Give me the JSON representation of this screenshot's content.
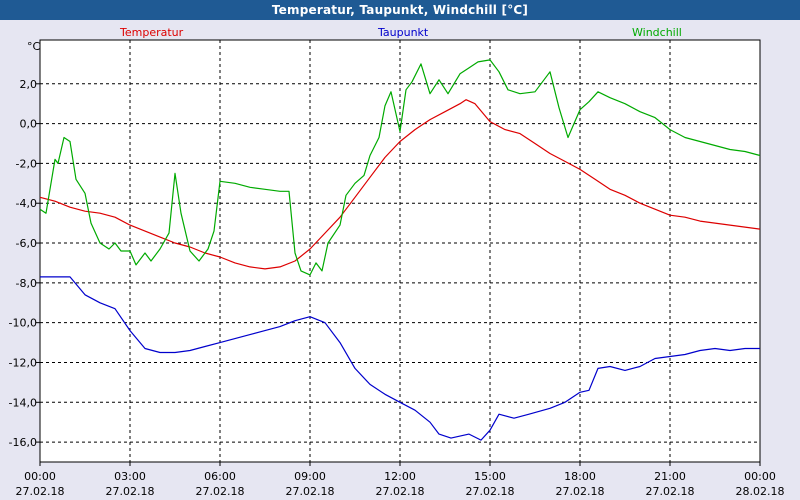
{
  "window": {
    "title": "Temperatur, Taupunkt, Windchill [°C]"
  },
  "chart_data": {
    "type": "line",
    "ylabel_unit": "°C",
    "ylim": [
      -17,
      4.2
    ],
    "y_ticks": [
      "2,0",
      "0,0",
      "-2,0",
      "-4,0",
      "-6,0",
      "-8,0",
      "-10,0",
      "-12,0",
      "-14,0",
      "-16,0"
    ],
    "y_tick_values": [
      2,
      0,
      -2,
      -4,
      -6,
      -8,
      -10,
      -12,
      -14,
      -16
    ],
    "x_tick_times": [
      "00:00",
      "03:00",
      "06:00",
      "09:00",
      "12:00",
      "15:00",
      "18:00",
      "21:00",
      "00:00"
    ],
    "x_tick_dates": [
      "27.02.18",
      "27.02.18",
      "27.02.18",
      "27.02.18",
      "27.02.18",
      "27.02.18",
      "27.02.18",
      "27.02.18",
      "28.02.18"
    ],
    "x_range_hours": [
      0,
      24
    ],
    "grid": true,
    "legend_position": "top",
    "series": [
      {
        "name": "Temperatur",
        "color": "#dd0000",
        "points": [
          [
            0,
            -3.7
          ],
          [
            0.5,
            -3.9
          ],
          [
            1,
            -4.2
          ],
          [
            1.5,
            -4.4
          ],
          [
            2,
            -4.5
          ],
          [
            2.5,
            -4.7
          ],
          [
            3,
            -5.1
          ],
          [
            3.5,
            -5.4
          ],
          [
            4,
            -5.7
          ],
          [
            4.5,
            -6.0
          ],
          [
            5,
            -6.2
          ],
          [
            5.5,
            -6.5
          ],
          [
            6,
            -6.7
          ],
          [
            6.5,
            -7.0
          ],
          [
            7,
            -7.2
          ],
          [
            7.5,
            -7.3
          ],
          [
            8,
            -7.2
          ],
          [
            8.5,
            -6.9
          ],
          [
            9,
            -6.3
          ],
          [
            9.5,
            -5.5
          ],
          [
            10,
            -4.7
          ],
          [
            10.5,
            -3.7
          ],
          [
            11,
            -2.7
          ],
          [
            11.5,
            -1.7
          ],
          [
            12,
            -0.9
          ],
          [
            12.5,
            -0.3
          ],
          [
            13,
            0.2
          ],
          [
            13.5,
            0.6
          ],
          [
            14,
            1.0
          ],
          [
            14.2,
            1.2
          ],
          [
            14.5,
            1.0
          ],
          [
            15,
            0.1
          ],
          [
            15.5,
            -0.3
          ],
          [
            16,
            -0.5
          ],
          [
            16.5,
            -1.0
          ],
          [
            17,
            -1.5
          ],
          [
            17.5,
            -1.9
          ],
          [
            18,
            -2.3
          ],
          [
            18.5,
            -2.8
          ],
          [
            19,
            -3.3
          ],
          [
            19.5,
            -3.6
          ],
          [
            20,
            -4.0
          ],
          [
            20.5,
            -4.3
          ],
          [
            21,
            -4.6
          ],
          [
            21.5,
            -4.7
          ],
          [
            22,
            -4.9
          ],
          [
            22.5,
            -5.0
          ],
          [
            23,
            -5.1
          ],
          [
            23.5,
            -5.2
          ],
          [
            24,
            -5.3
          ]
        ]
      },
      {
        "name": "Taupunkt",
        "color": "#0000cc",
        "points": [
          [
            0,
            -7.7
          ],
          [
            0.5,
            -7.7
          ],
          [
            1,
            -7.7
          ],
          [
            1.5,
            -8.6
          ],
          [
            2,
            -9.0
          ],
          [
            2.5,
            -9.3
          ],
          [
            3,
            -10.4
          ],
          [
            3.5,
            -11.3
          ],
          [
            4,
            -11.5
          ],
          [
            4.5,
            -11.5
          ],
          [
            5,
            -11.4
          ],
          [
            5.5,
            -11.2
          ],
          [
            6,
            -11.0
          ],
          [
            6.5,
            -10.8
          ],
          [
            7,
            -10.6
          ],
          [
            7.5,
            -10.4
          ],
          [
            8,
            -10.2
          ],
          [
            8.5,
            -9.9
          ],
          [
            9,
            -9.7
          ],
          [
            9.5,
            -10.0
          ],
          [
            10,
            -11.0
          ],
          [
            10.5,
            -12.3
          ],
          [
            11,
            -13.1
          ],
          [
            11.5,
            -13.6
          ],
          [
            12,
            -14.0
          ],
          [
            12.5,
            -14.4
          ],
          [
            13,
            -15.0
          ],
          [
            13.3,
            -15.6
          ],
          [
            13.7,
            -15.8
          ],
          [
            14,
            -15.7
          ],
          [
            14.3,
            -15.6
          ],
          [
            14.7,
            -15.9
          ],
          [
            15,
            -15.4
          ],
          [
            15.3,
            -14.6
          ],
          [
            15.8,
            -14.8
          ],
          [
            16.3,
            -14.6
          ],
          [
            17,
            -14.3
          ],
          [
            17.5,
            -14.0
          ],
          [
            18,
            -13.5
          ],
          [
            18.3,
            -13.4
          ],
          [
            18.6,
            -12.3
          ],
          [
            19,
            -12.2
          ],
          [
            19.5,
            -12.4
          ],
          [
            20,
            -12.2
          ],
          [
            20.5,
            -11.8
          ],
          [
            21,
            -11.7
          ],
          [
            21.5,
            -11.6
          ],
          [
            22,
            -11.4
          ],
          [
            22.5,
            -11.3
          ],
          [
            23,
            -11.4
          ],
          [
            23.5,
            -11.3
          ],
          [
            24,
            -11.3
          ]
        ]
      },
      {
        "name": "Windchill",
        "color": "#00aa00",
        "points": [
          [
            0,
            -4.3
          ],
          [
            0.2,
            -4.5
          ],
          [
            0.5,
            -1.8
          ],
          [
            0.6,
            -2.0
          ],
          [
            0.8,
            -0.7
          ],
          [
            1,
            -0.9
          ],
          [
            1.2,
            -2.8
          ],
          [
            1.5,
            -3.5
          ],
          [
            1.7,
            -5.0
          ],
          [
            2,
            -6.0
          ],
          [
            2.3,
            -6.3
          ],
          [
            2.5,
            -6.0
          ],
          [
            2.7,
            -6.4
          ],
          [
            3,
            -6.4
          ],
          [
            3.2,
            -7.1
          ],
          [
            3.5,
            -6.5
          ],
          [
            3.7,
            -6.9
          ],
          [
            4,
            -6.3
          ],
          [
            4.3,
            -5.5
          ],
          [
            4.5,
            -2.5
          ],
          [
            4.7,
            -4.5
          ],
          [
            5,
            -6.4
          ],
          [
            5.3,
            -6.9
          ],
          [
            5.6,
            -6.3
          ],
          [
            5.8,
            -5.4
          ],
          [
            6,
            -2.9
          ],
          [
            6.5,
            -3.0
          ],
          [
            7,
            -3.2
          ],
          [
            7.5,
            -3.3
          ],
          [
            8,
            -3.4
          ],
          [
            8.3,
            -3.4
          ],
          [
            8.5,
            -6.5
          ],
          [
            8.7,
            -7.4
          ],
          [
            9,
            -7.6
          ],
          [
            9.2,
            -7.0
          ],
          [
            9.4,
            -7.4
          ],
          [
            9.6,
            -6.0
          ],
          [
            10,
            -5.1
          ],
          [
            10.2,
            -3.6
          ],
          [
            10.5,
            -3.0
          ],
          [
            10.8,
            -2.6
          ],
          [
            11,
            -1.6
          ],
          [
            11.3,
            -0.7
          ],
          [
            11.5,
            0.9
          ],
          [
            11.7,
            1.6
          ],
          [
            12,
            -0.4
          ],
          [
            12.2,
            1.7
          ],
          [
            12.4,
            2.1
          ],
          [
            12.7,
            3.0
          ],
          [
            13,
            1.5
          ],
          [
            13.3,
            2.2
          ],
          [
            13.6,
            1.5
          ],
          [
            14,
            2.5
          ],
          [
            14.3,
            2.8
          ],
          [
            14.6,
            3.1
          ],
          [
            15,
            3.2
          ],
          [
            15.3,
            2.6
          ],
          [
            15.6,
            1.7
          ],
          [
            16,
            1.5
          ],
          [
            16.5,
            1.6
          ],
          [
            17,
            2.6
          ],
          [
            17.3,
            0.8
          ],
          [
            17.6,
            -0.7
          ],
          [
            18,
            0.7
          ],
          [
            18.3,
            1.1
          ],
          [
            18.6,
            1.6
          ],
          [
            19,
            1.3
          ],
          [
            19.5,
            1.0
          ],
          [
            20,
            0.6
          ],
          [
            20.5,
            0.3
          ],
          [
            21,
            -0.3
          ],
          [
            21.5,
            -0.7
          ],
          [
            22,
            -0.9
          ],
          [
            22.5,
            -1.1
          ],
          [
            23,
            -1.3
          ],
          [
            23.5,
            -1.4
          ],
          [
            24,
            -1.6
          ]
        ]
      }
    ]
  }
}
